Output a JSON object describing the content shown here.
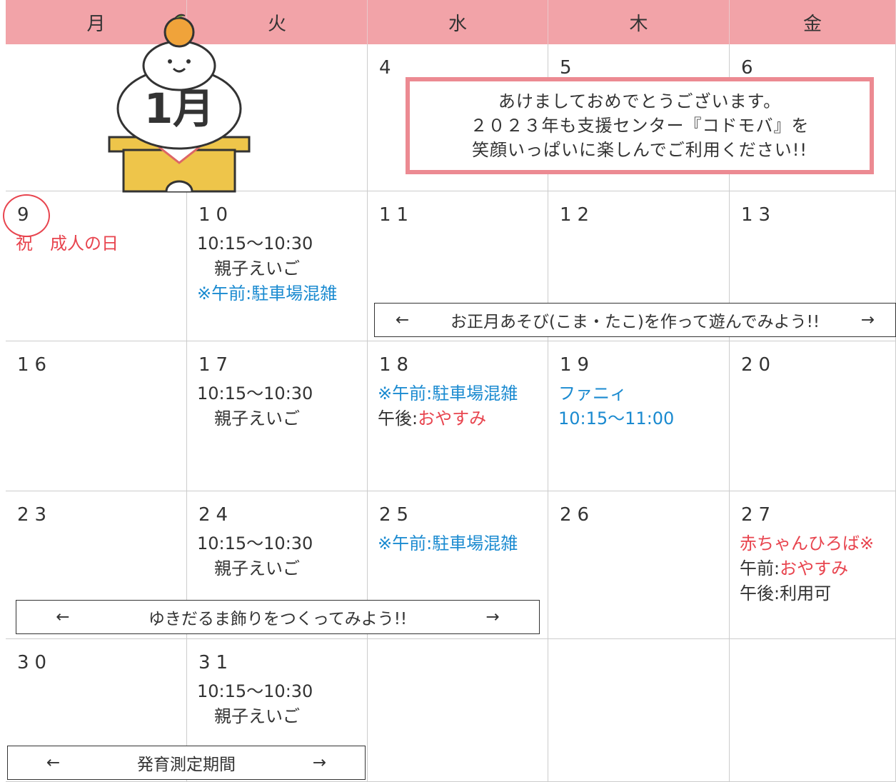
{
  "weekdays": [
    "月",
    "火",
    "水",
    "木",
    "金"
  ],
  "illustration_label": "1月",
  "notice": [
    "あけましておめでとうございます。",
    "２０２３年も支援センター『コドモバ』を",
    "笑顔いっぱいに楽しんでご利用ください!!"
  ],
  "weeks": [
    [
      null,
      null,
      {
        "date": 4
      },
      {
        "date": 5
      },
      {
        "date": 6
      }
    ],
    [
      {
        "date": 9,
        "circled": true,
        "lines": [
          [
            {
              "text": "祝　成人の日",
              "color": "#e8454f"
            }
          ]
        ]
      },
      {
        "date": 10,
        "lines": [
          [
            {
              "text": "10:15～10:30"
            }
          ],
          [
            {
              "text": "　親子えいご"
            }
          ],
          [
            {
              "text": "※午前:駐車場混雑",
              "color": "#1a8ad0"
            }
          ]
        ]
      },
      {
        "date": 11
      },
      {
        "date": 12
      },
      {
        "date": 13
      }
    ],
    [
      {
        "date": 16
      },
      {
        "date": 17,
        "lines": [
          [
            {
              "text": "10:15～10:30"
            }
          ],
          [
            {
              "text": "　親子えいご"
            }
          ]
        ]
      },
      {
        "date": 18,
        "lines": [
          [
            {
              "text": "※午前:駐車場混雑",
              "color": "#1a8ad0"
            }
          ],
          [
            {
              "text": "午後:"
            },
            {
              "text": "おやすみ",
              "color": "#e8454f"
            }
          ]
        ]
      },
      {
        "date": 19,
        "lines": [
          [
            {
              "text": "ファニィ",
              "color": "#1a8ad0"
            }
          ],
          [
            {
              "text": "10:15～11:00",
              "color": "#1a8ad0"
            }
          ]
        ]
      },
      {
        "date": 20
      }
    ],
    [
      {
        "date": 23
      },
      {
        "date": 24,
        "lines": [
          [
            {
              "text": "10:15～10:30"
            }
          ],
          [
            {
              "text": "　親子えいご"
            }
          ]
        ]
      },
      {
        "date": 25,
        "lines": [
          [
            {
              "text": "※午前:駐車場混雑",
              "color": "#1a8ad0"
            }
          ]
        ]
      },
      {
        "date": 26
      },
      {
        "date": 27,
        "lines": [
          [
            {
              "text": "赤ちゃんひろば※",
              "color": "#e8454f"
            }
          ],
          [
            {
              "text": "午前:"
            },
            {
              "text": "おやすみ",
              "color": "#e8454f"
            }
          ],
          [
            {
              "text": "午後:利用可"
            }
          ]
        ]
      }
    ],
    [
      {
        "date": 30
      },
      {
        "date": 31,
        "lines": [
          [
            {
              "text": "10:15～10:30"
            }
          ],
          [
            {
              "text": "　親子えいご"
            }
          ]
        ]
      },
      null,
      null,
      null
    ]
  ],
  "banners": [
    {
      "left": "←",
      "text": "お正月あそび(こま・たこ)を作って遊んでみよう!!",
      "right": "→"
    },
    {
      "left": "←",
      "text": "ゆきだるま飾りをつくってみよう!!",
      "right": "→"
    },
    {
      "left": "←",
      "text": "発育測定期間",
      "right": "→"
    }
  ]
}
